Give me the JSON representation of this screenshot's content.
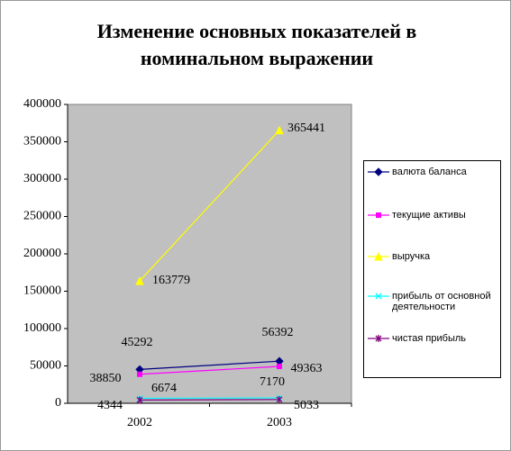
{
  "chart_data": {
    "type": "line",
    "title": "Изменение основных показателей в номинальном выражении",
    "categories": [
      "2002",
      "2003"
    ],
    "ylim": [
      0,
      400000
    ],
    "yticks": [
      0,
      50000,
      100000,
      150000,
      200000,
      250000,
      300000,
      350000,
      400000
    ],
    "series": [
      {
        "name": "валюта баланса",
        "color": "#000080",
        "marker": "diamond",
        "values": [
          45292,
          56392
        ]
      },
      {
        "name": "текущие активы",
        "color": "#ff00ff",
        "marker": "square",
        "values": [
          38850,
          49363
        ]
      },
      {
        "name": "выручка",
        "color": "#ffff00",
        "marker": "triangle",
        "values": [
          163779,
          365441
        ]
      },
      {
        "name": "прибыль от основной деятельности",
        "color": "#00ffff",
        "marker": "x",
        "values": [
          6674,
          7170
        ]
      },
      {
        "name": "чистая прибыль",
        "color": "#800080",
        "marker": "asterisk",
        "values": [
          4344,
          5033
        ]
      }
    ],
    "legend": "right"
  }
}
